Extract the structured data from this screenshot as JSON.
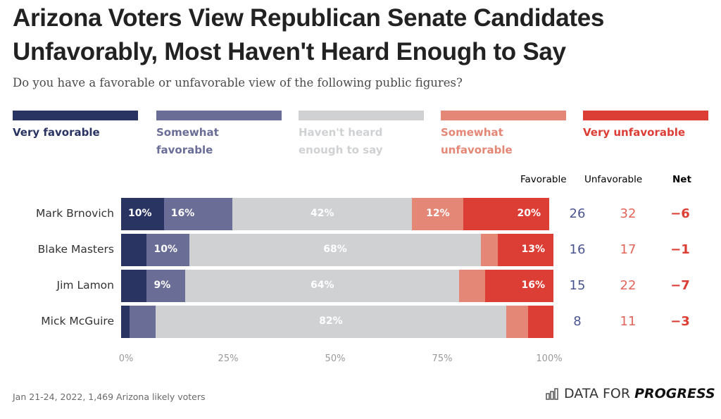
{
  "header": {
    "title": "Arizona Voters View Republican Senate Candidates Unfavorably, Most Haven't Heard Enough to Say",
    "subtitle": "Do you have a favorable or unfavorable view of the following public figures?"
  },
  "legend": [
    {
      "label": "Very favorable",
      "color": "#2a3462"
    },
    {
      "label": "Somewhat favorable",
      "color": "#6a6e96"
    },
    {
      "label": "Haven't heard enough to say",
      "color": "#d0d1d3"
    },
    {
      "label": "Somewhat unfavorable",
      "color": "#e48776"
    },
    {
      "label": "Very unfavorable",
      "color": "#dc3d35"
    }
  ],
  "columns": {
    "favorable": {
      "label": "Favorable",
      "color": "#4a5590"
    },
    "unfavorable": {
      "label": "Unfavorable",
      "color": "#e2645a"
    },
    "net": {
      "label": "Net",
      "color": "#2a3462"
    }
  },
  "chart_data": {
    "type": "bar",
    "orientation": "horizontal-stacked-100",
    "title": "Arizona Voters View Republican Senate Candidates Unfavorably, Most Haven't Heard Enough to Say",
    "subtitle": "Do you have a favorable or unfavorable view of the following public figures?",
    "xlabel": "",
    "ylabel": "",
    "xlim": [
      0,
      100
    ],
    "x_ticks": [
      "0%",
      "25%",
      "50%",
      "75%",
      "100%"
    ],
    "legend_position": "top",
    "grid": false,
    "categories": [
      "Mark Brnovich",
      "Blake Masters",
      "Jim Lamon",
      "Mick McGuire"
    ],
    "series": [
      {
        "name": "Very favorable",
        "values": [
          10,
          6,
          6,
          2
        ],
        "labels": [
          "10%",
          "",
          "",
          ""
        ]
      },
      {
        "name": "Somewhat favorable",
        "values": [
          16,
          10,
          9,
          6
        ],
        "labels": [
          "16%",
          "10%",
          "9%",
          ""
        ]
      },
      {
        "name": "Haven't heard enough to say",
        "values": [
          42,
          68,
          64,
          82
        ],
        "labels": [
          "42%",
          "68%",
          "64%",
          "82%"
        ]
      },
      {
        "name": "Somewhat unfavorable",
        "values": [
          12,
          4,
          6,
          5
        ],
        "labels": [
          "12%",
          "",
          "",
          ""
        ]
      },
      {
        "name": "Very unfavorable",
        "values": [
          20,
          13,
          16,
          6
        ],
        "labels": [
          "20%",
          "13%",
          "16%",
          ""
        ]
      }
    ],
    "summary": {
      "favorable": [
        26,
        16,
        15,
        8
      ],
      "unfavorable": [
        32,
        17,
        22,
        11
      ],
      "net": [
        "−6",
        "−1",
        "−7",
        "−3"
      ]
    }
  },
  "footer": {
    "note": "Jan 21-24, 2022, 1,469 Arizona likely voters",
    "logo_light": "DATA FOR",
    "logo_bold": "PROGRESS",
    "logo_icon": "bar-chart-icon"
  }
}
